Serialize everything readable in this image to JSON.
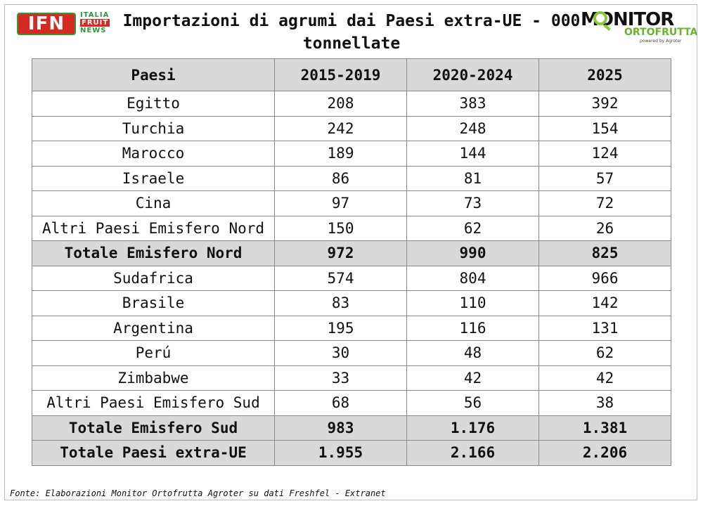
{
  "logos": {
    "ifn": {
      "mark": "IFN",
      "lines": [
        "ITALIA",
        "FRUIT",
        "NEWS"
      ],
      "colors": {
        "red": "#d42a22",
        "green": "#2a9a3a"
      }
    },
    "monitor": {
      "line1": "MONITOR",
      "line2": "ORTOFRUTTA",
      "line3": "powered by Agroter",
      "colors": {
        "green": "#6ab42d"
      }
    }
  },
  "chart_data": {
    "type": "table",
    "title": "Importazioni di agrumi dai Paesi extra-UE - 000 tonnellate",
    "columns": [
      "Paesi",
      "2015-2019",
      "2020-2024",
      "2025"
    ],
    "rows": [
      {
        "label": "Egitto",
        "values": [
          "208",
          "383",
          "392"
        ],
        "total": false
      },
      {
        "label": "Turchia",
        "values": [
          "242",
          "248",
          "154"
        ],
        "total": false
      },
      {
        "label": "Marocco",
        "values": [
          "189",
          "144",
          "124"
        ],
        "total": false
      },
      {
        "label": "Israele",
        "values": [
          "86",
          "81",
          "57"
        ],
        "total": false
      },
      {
        "label": "Cina",
        "values": [
          "97",
          "73",
          "72"
        ],
        "total": false
      },
      {
        "label": "Altri Paesi Emisfero Nord",
        "values": [
          "150",
          "62",
          "26"
        ],
        "total": false
      },
      {
        "label": "Totale Emisfero Nord",
        "values": [
          "972",
          "990",
          "825"
        ],
        "total": true
      },
      {
        "label": "Sudafrica",
        "values": [
          "574",
          "804",
          "966"
        ],
        "total": false
      },
      {
        "label": "Brasile",
        "values": [
          "83",
          "110",
          "142"
        ],
        "total": false
      },
      {
        "label": "Argentina",
        "values": [
          "195",
          "116",
          "131"
        ],
        "total": false
      },
      {
        "label": "Perú",
        "values": [
          "30",
          "48",
          "62"
        ],
        "total": false
      },
      {
        "label": "Zimbabwe",
        "values": [
          "33",
          "42",
          "42"
        ],
        "total": false
      },
      {
        "label": "Altri Paesi Emisfero Sud",
        "values": [
          "68",
          "56",
          "38"
        ],
        "total": false
      },
      {
        "label": "Totale Emisfero Sud",
        "values": [
          "983",
          "1.176",
          "1.381"
        ],
        "total": true
      },
      {
        "label": "Totale Paesi extra-UE",
        "values": [
          "1.955",
          "2.166",
          "2.206"
        ],
        "total": true
      }
    ],
    "colors": {
      "header_fill": "#d9d9d9",
      "total_fill": "#d9d9d9",
      "border": "#8a8a8a"
    }
  },
  "source": "Fonte: Elaborazioni Monitor Ortofrutta Agroter su dati Freshfel - Extranet"
}
